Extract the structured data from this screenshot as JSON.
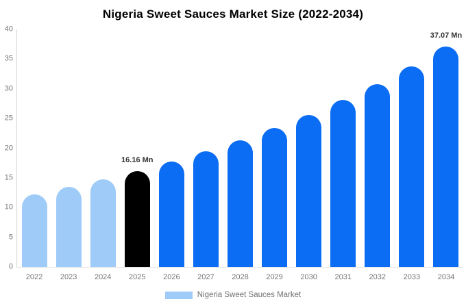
{
  "title": "Nigeria Sweet Sauces Market Size (2022-2034)",
  "legend": {
    "label": "Nigeria Sweet Sauces Market",
    "swatch_color": "#9fcbf8"
  },
  "colors": {
    "past_bar": "#9fcbf8",
    "highlight_bar": "#000000",
    "future_bar": "#0b6cf4",
    "axis_text": "#757575",
    "axis_line": "#d6d6d6",
    "annotation_text": "#333333",
    "background": "#ffffff"
  },
  "chart_data": {
    "type": "bar",
    "title": "Nigeria Sweet Sauces Market Size (2022-2034)",
    "unit": "Mn",
    "categories": [
      "2022",
      "2023",
      "2024",
      "2025",
      "2026",
      "2027",
      "2028",
      "2029",
      "2030",
      "2031",
      "2032",
      "2033",
      "2034"
    ],
    "values": [
      12.25,
      13.44,
      14.74,
      16.16,
      17.72,
      19.43,
      21.31,
      23.37,
      25.63,
      28.11,
      30.82,
      33.8,
      37.07
    ],
    "bar_colors": [
      "#9fcbf8",
      "#9fcbf8",
      "#9fcbf8",
      "#000000",
      "#0b6cf4",
      "#0b6cf4",
      "#0b6cf4",
      "#0b6cf4",
      "#0b6cf4",
      "#0b6cf4",
      "#0b6cf4",
      "#0b6cf4",
      "#0b6cf4"
    ],
    "annotations": [
      {
        "index": 3,
        "category": "2025",
        "text": "16.16 Mn"
      },
      {
        "index": 12,
        "category": "2034",
        "text": "37.07 Mn"
      }
    ],
    "xlabel": "",
    "ylabel": "",
    "ylim": [
      0,
      40
    ],
    "yticks": [
      0,
      5,
      10,
      15,
      20,
      25,
      30,
      35,
      40
    ],
    "grid": false,
    "legend_position": "bottom"
  }
}
